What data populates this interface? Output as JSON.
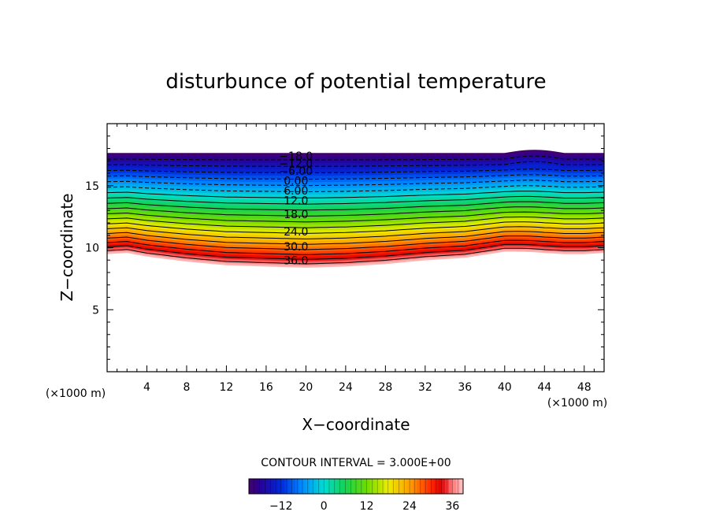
{
  "chart_data": {
    "type": "contour",
    "title": "disturbunce of potential temperature",
    "xlabel": "X−coordinate",
    "ylabel": "Z−coordinate",
    "x_unit_left": "(×1000 m)",
    "x_unit_right": "(×1000 m)",
    "xlim": [
      0,
      50
    ],
    "ylim": [
      0,
      20
    ],
    "x_ticks": [
      4,
      8,
      12,
      16,
      20,
      24,
      28,
      32,
      36,
      40,
      44,
      48
    ],
    "y_ticks": [
      5,
      10,
      15
    ],
    "contour_interval_text": "CONTOUR INTERVAL = 3.000E+00",
    "contour_labels": [
      "−18.0",
      "−12.0",
      "−6.00",
      "0.00",
      "6.00",
      "12.0",
      "18.0",
      "24.0",
      "30.0",
      "36.0"
    ],
    "contour_label_x": 19,
    "contour_label_z": [
      17.4,
      16.8,
      16.2,
      15.4,
      14.6,
      13.8,
      12.7,
      11.3,
      10.1,
      9.0
    ],
    "value_range": [
      -21,
      39
    ],
    "top_boundary_z": 17.6,
    "bottom_boundary": {
      "x": [
        0,
        2,
        4,
        8,
        12,
        16,
        20,
        24,
        28,
        32,
        36,
        40,
        44,
        48,
        50
      ],
      "z": [
        9.5,
        9.6,
        9.3,
        8.9,
        8.6,
        8.5,
        8.4,
        8.5,
        8.7,
        9.0,
        9.2,
        9.7,
        9.5,
        9.5,
        9.6
      ]
    },
    "colorbar": {
      "ticks": [
        -12,
        0,
        12,
        24,
        36
      ],
      "tick_labels": [
        "−12",
        "0",
        "12",
        "24",
        "36"
      ],
      "range": [
        -21,
        39
      ]
    }
  }
}
